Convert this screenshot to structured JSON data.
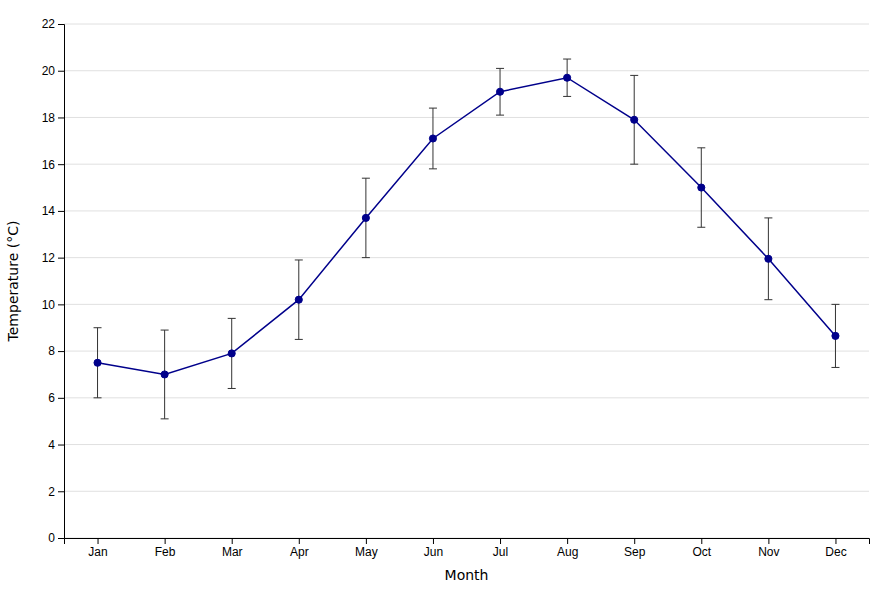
{
  "chart_data": {
    "type": "line",
    "xlabel": "Month",
    "ylabel": "Temperature (°C)",
    "categories": [
      "Jan",
      "Feb",
      "Mar",
      "Apr",
      "May",
      "Jun",
      "Jul",
      "Aug",
      "Sep",
      "Oct",
      "Nov",
      "Dec"
    ],
    "values": [
      7.5,
      7.0,
      7.9,
      10.2,
      13.7,
      17.1,
      19.1,
      19.7,
      17.9,
      15.0,
      11.95,
      8.65
    ],
    "errors": [
      1.5,
      1.9,
      1.5,
      1.7,
      1.7,
      1.3,
      1.0,
      0.8,
      1.9,
      1.7,
      1.75,
      1.35
    ],
    "color": "#00008B",
    "marker": "circle",
    "ylim": [
      0,
      22
    ],
    "yticks": [
      0,
      2,
      4,
      6,
      8,
      10,
      12,
      14,
      16,
      18,
      20,
      22
    ],
    "grid": true
  }
}
